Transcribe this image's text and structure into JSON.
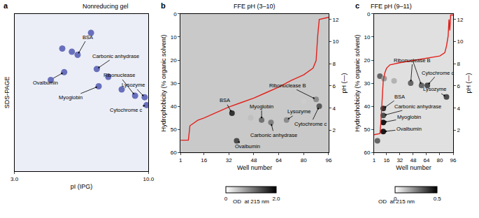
{
  "chart_data": [
    {
      "type": "scatter",
      "panel": "a",
      "title": "Nonreducing gel",
      "x_label": "pI (IPG)",
      "y_label": "SDS-PAGE",
      "xlim": [
        3,
        10
      ],
      "xticks": [
        {
          "value": 3,
          "label": "3.0"
        },
        {
          "value": 10,
          "label": "10.0"
        }
      ],
      "ylim": [
        0,
        100
      ],
      "tick_labels": "x",
      "series": [
        {
          "type": "scatter",
          "color": "#3c46a8",
          "x": [
            6.3,
            5.6,
            7.3,
            9.3,
            9.8,
            7.4,
            9.9,
            4.9,
            6.0,
            7.0,
            7.9,
            8.6,
            5.5
          ],
          "values": [
            74,
            63,
            65,
            48,
            47,
            54,
            42,
            58,
            76,
            88,
            60,
            52,
            78
          ]
        }
      ],
      "annotations": [
        {
          "text": "BSA",
          "points": [
            [
              6.3,
              74
            ]
          ]
        },
        {
          "text": "Carbonic anhydrase",
          "points": [
            [
              7.3,
              65
            ]
          ]
        },
        {
          "text": "Ovalbumin",
          "points": [
            [
              5.6,
              63
            ]
          ]
        },
        {
          "text": "Ribonuclease",
          "points": [
            [
              9.3,
              48
            ]
          ]
        },
        {
          "text": "Lysozyme",
          "points": [
            [
              9.8,
              47
            ]
          ]
        },
        {
          "text": "Myoglobin",
          "points": [
            [
              7.4,
              54
            ]
          ]
        },
        {
          "text": "Cytochrome c",
          "points": [
            [
              9.9,
              42
            ]
          ]
        }
      ]
    },
    {
      "type": "scatter",
      "panel": "b",
      "title": "FFE pH (3–10)",
      "x_label": "Well number",
      "y_label": "Hydrophobicity (% organic solvent)",
      "y2_label": "pH (—)",
      "xlim": [
        1,
        96
      ],
      "xticks": [
        1,
        16,
        32,
        48,
        64,
        80,
        96
      ],
      "ylim": [
        60,
        0
      ],
      "yticks": [
        0,
        10,
        20,
        30,
        40,
        50,
        60
      ],
      "y2lim": [
        0,
        12.5
      ],
      "y2ticks": [
        2,
        4,
        6,
        8,
        10,
        12
      ],
      "series": [
        {
          "type": "scatter",
          "x": [
            34,
            37,
            53,
            59,
            69,
            88,
            90,
            46,
            80
          ],
          "values": [
            43,
            55,
            46,
            47,
            46,
            37,
            40,
            45,
            38
          ],
          "od": [
            1.6,
            1.4,
            1.1,
            1.0,
            0.9,
            0.9,
            1.3,
            0.5,
            0.4
          ]
        },
        {
          "name": "pH",
          "type": "line",
          "axis": "y2",
          "color": "#e3201b",
          "x": [
            1,
            6,
            7,
            12,
            16,
            24,
            32,
            40,
            48,
            56,
            64,
            72,
            80,
            86,
            88,
            89,
            90,
            96
          ],
          "values": [
            1.1,
            1.1,
            2.4,
            2.9,
            3.1,
            3.6,
            4.1,
            4.5,
            4.9,
            5.4,
            5.9,
            6.5,
            7.0,
            7.6,
            8.3,
            10.5,
            12.0,
            12.2
          ]
        }
      ],
      "colorbar": {
        "title": "OD  at 215 nm",
        "lim": [
          0,
          2
        ],
        "ticks": [
          0,
          {
            "value": 2,
            "label": "2.0"
          }
        ]
      },
      "annotations": [
        {
          "text": "BSA",
          "points": [
            [
              34,
              43
            ]
          ]
        },
        {
          "text": "Myoglobin",
          "points": [
            [
              53,
              46
            ]
          ]
        },
        {
          "text": "Lysozyme",
          "points": [
            [
              69,
              46
            ]
          ]
        },
        {
          "text": "Carbonic anhydrase",
          "points": [
            [
              59,
              47
            ]
          ]
        },
        {
          "text": "Ovalbumin",
          "points": [
            [
              37,
              55
            ]
          ]
        },
        {
          "text": "Ribonuclease B",
          "points": [
            [
              88,
              37
            ]
          ]
        },
        {
          "text": "Cytochrome c",
          "points": [
            [
              90,
              40
            ]
          ]
        }
      ]
    },
    {
      "type": "scatter",
      "panel": "c",
      "title": "FFE pH (9–11)",
      "x_label": "Well number",
      "y_label": "Hydrophobicity (% organic solvent)",
      "y2_label": "pH (—)",
      "xlim": [
        1,
        96
      ],
      "xticks": [
        1,
        16,
        32,
        48,
        64,
        80,
        96
      ],
      "ylim": [
        60,
        0
      ],
      "yticks": [
        0,
        10,
        20,
        30,
        40,
        50,
        60
      ],
      "y2lim": [
        0,
        12.5
      ],
      "y2ticks": [
        2,
        4,
        6,
        8,
        10,
        12
      ],
      "series": [
        {
          "type": "scatter",
          "x": [
            12,
            12,
            12,
            12,
            45,
            58,
            65,
            88,
            8,
            13,
            5,
            25
          ],
          "values": [
            41,
            44,
            47,
            51,
            30,
            31,
            31,
            36,
            27,
            28,
            55,
            29
          ],
          "od": [
            0.4,
            0.35,
            0.45,
            0.45,
            0.3,
            0.3,
            0.35,
            0.35,
            0.3,
            0.2,
            0.3,
            0.15
          ]
        },
        {
          "name": "pH",
          "type": "line",
          "axis": "y2",
          "color": "#e3201b",
          "x": [
            1,
            8,
            9,
            10,
            11,
            12,
            14,
            16,
            20,
            32,
            48,
            64,
            80,
            86,
            88,
            90,
            91,
            92,
            93,
            96
          ],
          "values": [
            1.6,
            1.7,
            2.5,
            4.0,
            5.5,
            6.5,
            7.2,
            7.6,
            7.9,
            8.1,
            8.3,
            8.5,
            8.7,
            9.0,
            9.6,
            10.5,
            12.0,
            11.0,
            12.4,
            12.4
          ]
        }
      ],
      "colorbar": {
        "title": "OD  at 215 nm",
        "lim": [
          0,
          0.5
        ],
        "ticks": [
          0,
          0.5
        ]
      },
      "annotations": [
        {
          "text": "BSA",
          "points": [
            [
              12,
              41
            ]
          ]
        },
        {
          "text": "Carbonic anhydrase",
          "points": [
            [
              12,
              44
            ]
          ]
        },
        {
          "text": "Myoglobin",
          "points": [
            [
              12,
              47
            ]
          ]
        },
        {
          "text": "Ovalbumin",
          "points": [
            [
              12,
              51
            ]
          ]
        },
        {
          "text": "Ribonuclease B",
          "points": [
            [
              45,
              30
            ],
            [
              58,
              31
            ]
          ]
        },
        {
          "text": "Cytochrome c",
          "points": [
            [
              65,
              31
            ]
          ]
        },
        {
          "text": "Lysozyme",
          "points": [
            [
              88,
              36
            ]
          ]
        }
      ]
    }
  ]
}
